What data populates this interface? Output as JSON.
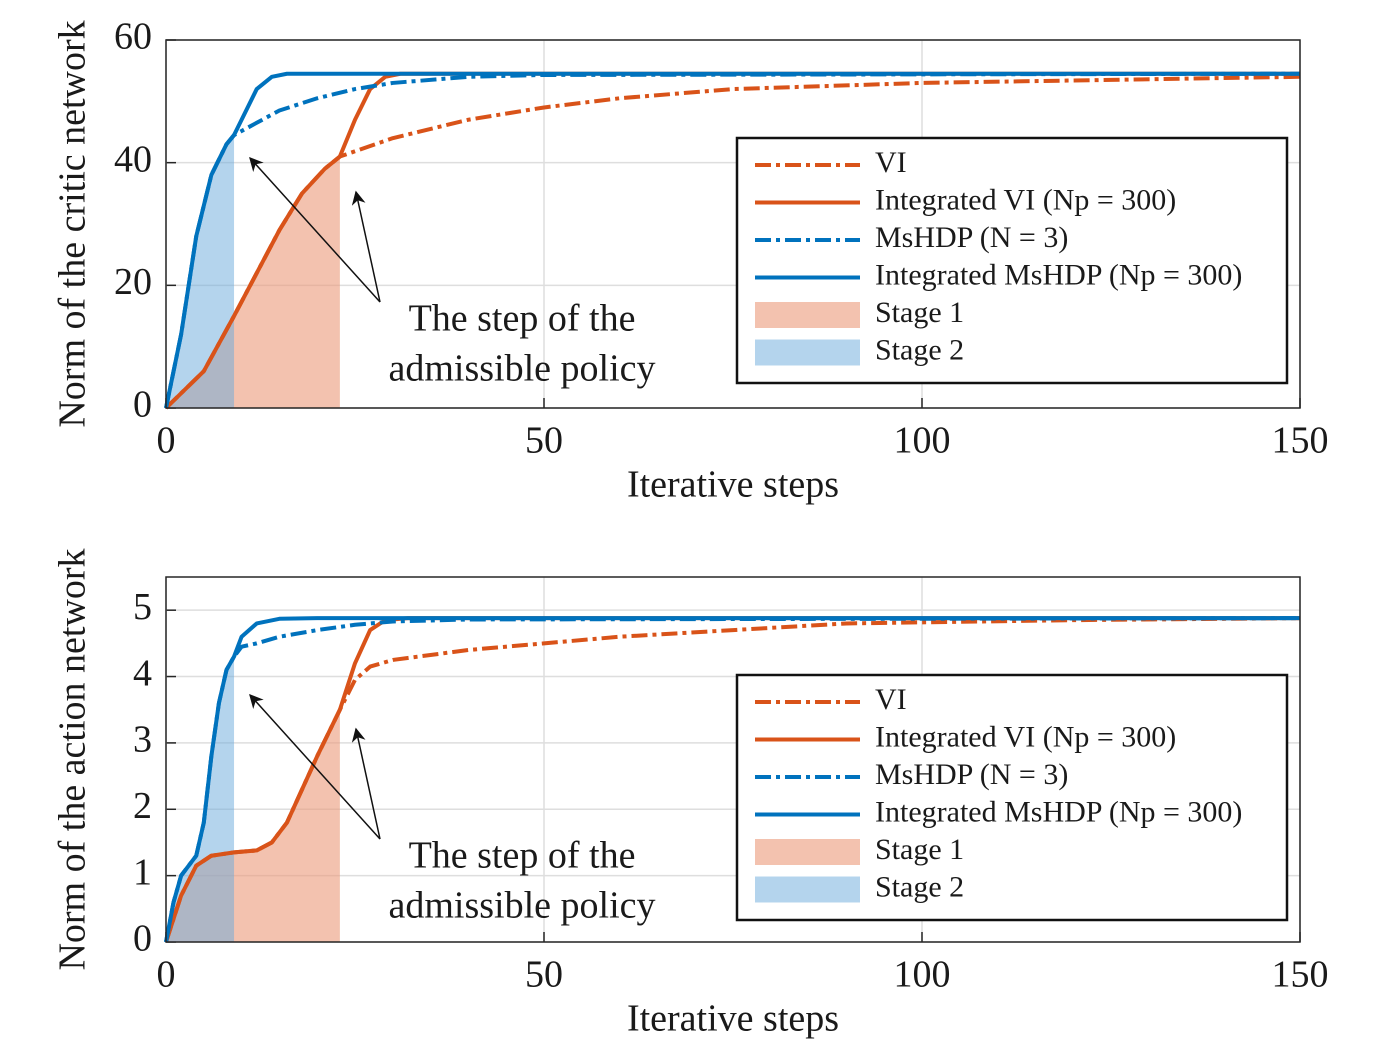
{
  "chart_data": [
    {
      "type": "line",
      "xlabel": "Iterative steps",
      "ylabel": "Norm of the critic network",
      "xlim": [
        0,
        150
      ],
      "ylim": [
        0,
        60
      ],
      "xticks": [
        0,
        50,
        100,
        150
      ],
      "yticks": [
        0,
        20,
        40,
        60
      ],
      "grid": true,
      "legend": "east",
      "annotation": [
        "The step of the",
        "admissible policy"
      ],
      "series": [
        {
          "name": "VI",
          "color": "#d95319",
          "style": "dashed",
          "x": [
            0,
            5,
            9,
            12,
            15,
            18,
            21,
            23,
            30,
            40,
            50,
            60,
            75,
            100,
            125,
            150
          ],
          "values": [
            0,
            6,
            15,
            22,
            29,
            35,
            39,
            41,
            44,
            47,
            49,
            50.5,
            52,
            53,
            53.5,
            54
          ]
        },
        {
          "name": "Integrated VI (Np = 300)",
          "color": "#d95319",
          "style": "solid",
          "x": [
            0,
            5,
            9,
            12,
            15,
            18,
            21,
            23,
            25,
            27,
            29,
            31,
            150
          ],
          "values": [
            0,
            6,
            15,
            22,
            29,
            35,
            39,
            41,
            47,
            52,
            54,
            54.5,
            54.5
          ]
        },
        {
          "name": "MsHDP (N = 3)",
          "color": "#0072bd",
          "style": "dashed",
          "x": [
            0,
            2,
            4,
            6,
            8,
            9,
            12,
            15,
            20,
            25,
            30,
            40,
            50,
            150
          ],
          "values": [
            0,
            12,
            28,
            38,
            43,
            44.5,
            46.5,
            48.5,
            50.5,
            52,
            53,
            54,
            54.3,
            54.5
          ]
        },
        {
          "name": "Integrated MsHDP (Np = 300)",
          "color": "#0072bd",
          "style": "solid",
          "x": [
            0,
            2,
            4,
            6,
            8,
            9,
            10,
            12,
            14,
            16,
            20,
            150
          ],
          "values": [
            0,
            12,
            28,
            38,
            43,
            44.5,
            47,
            52,
            54,
            54.5,
            54.5,
            54.5
          ]
        },
        {
          "name": "Stage 1",
          "color": "#eb9a7a",
          "style": "area",
          "x": [
            0,
            5,
            9,
            12,
            15,
            18,
            21,
            23
          ],
          "values": [
            0,
            6,
            15,
            22,
            29,
            35,
            39,
            41
          ]
        },
        {
          "name": "Stage 2",
          "color": "#6aaadb",
          "style": "area",
          "x": [
            0,
            2,
            4,
            6,
            8,
            9
          ],
          "values": [
            0,
            12,
            28,
            38,
            43,
            44.5
          ]
        }
      ]
    },
    {
      "type": "line",
      "xlabel": "Iterative steps",
      "ylabel": "Norm of the action network",
      "xlim": [
        0,
        150
      ],
      "ylim": [
        0,
        5.5
      ],
      "xticks": [
        0,
        50,
        100,
        150
      ],
      "yticks": [
        0,
        1,
        2,
        3,
        4,
        5
      ],
      "grid": true,
      "legend": "east",
      "annotation": [
        "The step of the",
        "admissible policy"
      ],
      "series": [
        {
          "name": "VI",
          "color": "#d95319",
          "style": "dashed",
          "x": [
            0,
            2,
            4,
            6,
            9,
            12,
            14,
            16,
            18,
            20,
            23,
            25,
            27,
            30,
            40,
            50,
            60,
            75,
            90,
            120,
            150
          ],
          "values": [
            0,
            0.7,
            1.15,
            1.3,
            1.35,
            1.38,
            1.5,
            1.8,
            2.3,
            2.8,
            3.5,
            3.95,
            4.15,
            4.25,
            4.4,
            4.5,
            4.6,
            4.7,
            4.8,
            4.85,
            4.88
          ]
        },
        {
          "name": "Integrated VI (Np = 300)",
          "color": "#d95319",
          "style": "solid",
          "x": [
            0,
            2,
            4,
            6,
            9,
            12,
            14,
            16,
            18,
            20,
            23,
            25,
            27,
            29,
            32,
            150
          ],
          "values": [
            0,
            0.7,
            1.15,
            1.3,
            1.35,
            1.38,
            1.5,
            1.8,
            2.3,
            2.8,
            3.5,
            4.2,
            4.7,
            4.85,
            4.88,
            4.88
          ]
        },
        {
          "name": "MsHDP (N = 3)",
          "color": "#0072bd",
          "style": "dashed",
          "x": [
            0,
            1,
            2,
            3,
            4,
            5,
            6,
            7,
            8,
            9,
            10,
            12,
            15,
            20,
            25,
            30,
            40,
            150
          ],
          "values": [
            0,
            0.6,
            1.0,
            1.15,
            1.3,
            1.8,
            2.8,
            3.6,
            4.1,
            4.3,
            4.45,
            4.5,
            4.6,
            4.7,
            4.78,
            4.83,
            4.86,
            4.88
          ]
        },
        {
          "name": "Integrated MsHDP (Np = 300)",
          "color": "#0072bd",
          "style": "solid",
          "x": [
            0,
            1,
            2,
            3,
            4,
            5,
            6,
            7,
            8,
            9,
            10,
            12,
            15,
            20,
            150
          ],
          "values": [
            0,
            0.6,
            1.0,
            1.15,
            1.3,
            1.8,
            2.8,
            3.6,
            4.1,
            4.3,
            4.6,
            4.8,
            4.87,
            4.88,
            4.88
          ]
        },
        {
          "name": "Stage 1",
          "color": "#eb9a7a",
          "style": "area",
          "x": [
            0,
            2,
            4,
            6,
            9,
            12,
            14,
            16,
            18,
            20,
            23
          ],
          "values": [
            0,
            0.7,
            1.15,
            1.3,
            1.35,
            1.38,
            1.5,
            1.8,
            2.3,
            2.8,
            3.5
          ]
        },
        {
          "name": "Stage 2",
          "color": "#6aaadb",
          "style": "area",
          "x": [
            0,
            1,
            2,
            3,
            4,
            5,
            6,
            7,
            8,
            9
          ],
          "values": [
            0,
            0.6,
            1.0,
            1.15,
            1.3,
            1.8,
            2.8,
            3.6,
            4.1,
            4.3
          ]
        }
      ]
    }
  ]
}
